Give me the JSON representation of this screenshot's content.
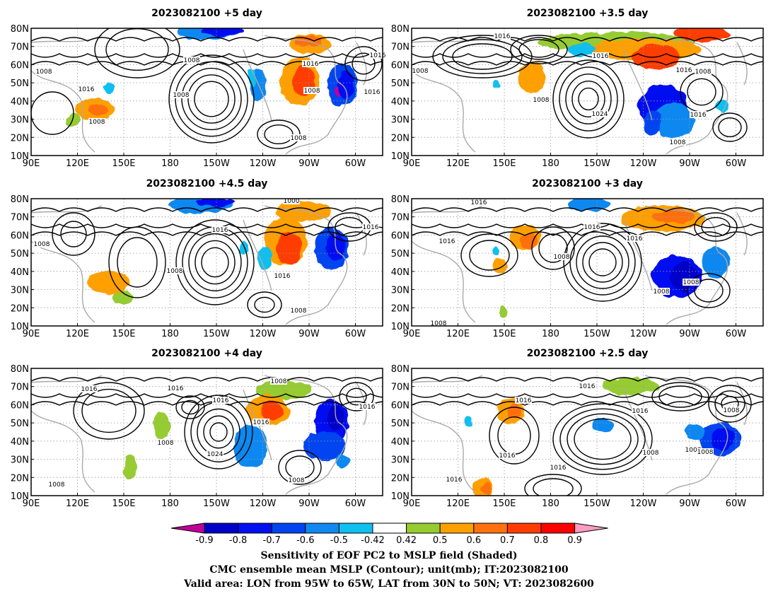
{
  "panels": [
    {
      "id": "p5",
      "title": "2023082100  +5 day",
      "labels": [
        "1016",
        "1008",
        "1008",
        "1016",
        "1016",
        "1008",
        "1008",
        "1016",
        "1008",
        "1008"
      ]
    },
    {
      "id": "p35",
      "title": "2023082100  +3.5  day",
      "labels": [
        "1016",
        "1016",
        "1016",
        "1008",
        "1008",
        "1008",
        "1024",
        "1016",
        "1008"
      ]
    },
    {
      "id": "p45",
      "title": "2023082100  +4.5  day",
      "labels": [
        "1000",
        "1016",
        "1016",
        "1008",
        "1008",
        "1016",
        "1008"
      ]
    },
    {
      "id": "p3",
      "title": "2023082100  +3  day",
      "labels": [
        "1016",
        "1016",
        "1016",
        "1016",
        "1008",
        "1008",
        "1008",
        "1008"
      ]
    },
    {
      "id": "p4",
      "title": "2023082100  +4  day",
      "labels": [
        "1016",
        "1016",
        "1016",
        "1008",
        "1016",
        "1008",
        "1024",
        "1008",
        "1016",
        "1008"
      ]
    },
    {
      "id": "p25",
      "title": "2023082100  +2.5  day",
      "labels": [
        "1016",
        "1016",
        "1008",
        "1016",
        "1008",
        "1016",
        "1016",
        "1008",
        "1016",
        "1008"
      ]
    }
  ],
  "axes": {
    "lat_ticks": [
      "10N",
      "20N",
      "30N",
      "40N",
      "50N",
      "60N",
      "70N",
      "80N"
    ],
    "lon_ticks": [
      "90E",
      "120E",
      "150E",
      "180",
      "150W",
      "120W",
      "90W",
      "60W"
    ]
  },
  "colorbar": {
    "labels": [
      "-0.9",
      "-0.8",
      "-0.7",
      "-0.6",
      "-0.5",
      "-0.42",
      "0.42",
      "0.5",
      "0.6",
      "0.7",
      "0.8",
      "0.9"
    ],
    "colors": [
      "#c0009a",
      "#0000c8",
      "#0010f0",
      "#0044f0",
      "#1188f0",
      "#10c0f0",
      "#ffffff",
      "#96cc30",
      "#ffa000",
      "#ff7010",
      "#ff3c00",
      "#ff0000",
      "#ff9cc0"
    ]
  },
  "caption": {
    "line1": "Sensitivity of EOF PC2 to MSLP field (Shaded)",
    "line2": "CMC ensemble mean MSLP (Contour); unit(mb); IT:2023082100",
    "line3": "Valid area: LON from 95W to 65W, LAT from 30N to 50N; VT: 2023082600"
  }
}
